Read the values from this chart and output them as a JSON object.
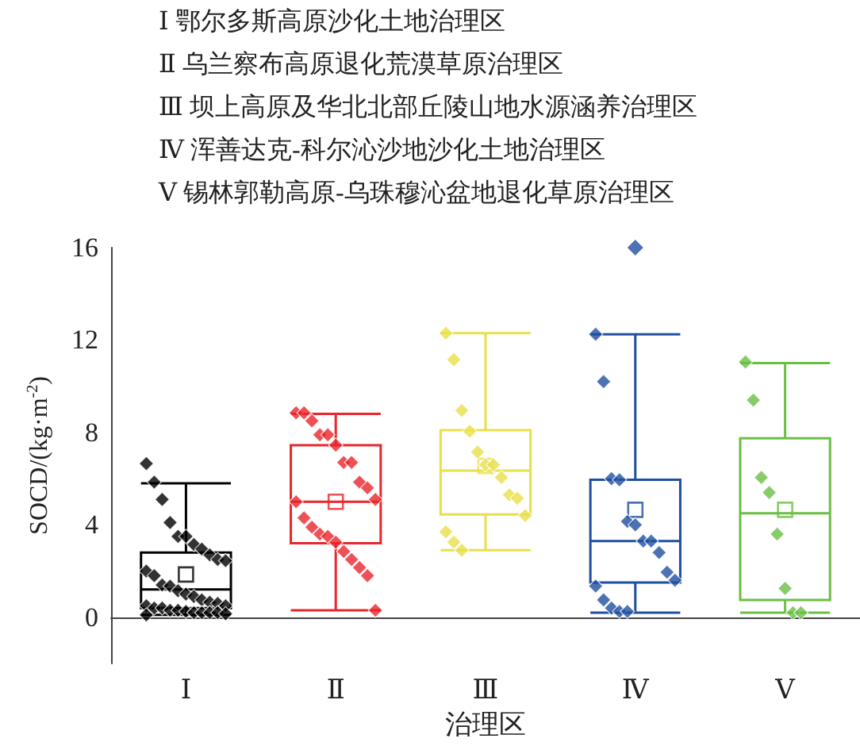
{
  "chart_data": {
    "type": "box",
    "annotations": [
      "Ⅰ 鄂尔多斯高原沙化土地治理区",
      "Ⅱ 乌兰察布高原退化荒漠草原治理区",
      "Ⅲ 坝上高原及华北北部丘陵山地水源涵养治理区",
      "Ⅳ 浑善达克-科尔沁沙地沙化土地治理区",
      "Ⅴ 锡林郭勒高原-乌珠穆沁盆地退化草原治理区"
    ],
    "xlabel": "治理区",
    "ylabel": "SOCD/(kg·m$^{-2}$)",
    "categories": [
      "Ⅰ",
      "Ⅱ",
      "Ⅲ",
      "Ⅳ",
      "Ⅴ"
    ],
    "colors": [
      "#000000",
      "#e8262b",
      "#e8e04a",
      "#1f4fa0",
      "#6abf45"
    ],
    "boxes": [
      {
        "low": 0.1,
        "q1": 0.4,
        "median": 1.2,
        "q3": 2.8,
        "high": 5.8,
        "mean": 1.85
      },
      {
        "low": 0.3,
        "q1": 3.2,
        "median": 5.0,
        "q3": 7.45,
        "high": 8.8,
        "mean": 5.0
      },
      {
        "low": 2.9,
        "q1": 4.45,
        "median": 6.35,
        "q3": 8.1,
        "high": 12.3,
        "mean": 6.55
      },
      {
        "low": 0.2,
        "q1": 1.5,
        "median": 3.3,
        "q3": 5.95,
        "high": 12.25,
        "mean": 4.65,
        "outliers": [
          16
        ]
      },
      {
        "low": 0.2,
        "q1": 0.75,
        "median": 4.5,
        "q3": 7.75,
        "high": 11.0,
        "mean": 4.65
      }
    ],
    "series": [
      {
        "type": "scatter",
        "color": "#000000",
        "x": [
          "Ⅰ",
          "Ⅰ",
          "Ⅰ",
          "Ⅰ",
          "Ⅰ",
          "Ⅰ",
          "Ⅰ",
          "Ⅰ",
          "Ⅰ",
          "Ⅰ",
          "Ⅰ",
          "Ⅰ",
          "Ⅰ",
          "Ⅰ",
          "Ⅰ",
          "Ⅰ",
          "Ⅰ",
          "Ⅰ",
          "Ⅰ",
          "Ⅰ",
          "Ⅰ",
          "Ⅰ",
          "Ⅰ",
          "Ⅰ",
          "Ⅰ",
          "Ⅰ",
          "Ⅰ",
          "Ⅰ",
          "Ⅰ",
          "Ⅰ",
          "Ⅰ",
          "Ⅰ",
          "Ⅰ",
          "Ⅰ"
        ],
        "values": [
          6.65,
          5.85,
          5.1,
          4.1,
          3.5,
          3.5,
          3.15,
          2.95,
          2.7,
          2.5,
          2.45,
          2.0,
          1.8,
          1.4,
          1.35,
          1.15,
          1.0,
          0.9,
          0.75,
          0.65,
          0.6,
          0.5,
          0.5,
          0.4,
          0.4,
          0.3,
          0.3,
          0.25,
          0.2,
          0.2,
          0.2,
          0.2,
          0.15,
          0.1
        ]
      },
      {
        "type": "scatter",
        "color": "#e8262b",
        "x": [
          "Ⅱ",
          "Ⅱ",
          "Ⅱ",
          "Ⅱ",
          "Ⅱ",
          "Ⅱ",
          "Ⅱ",
          "Ⅱ",
          "Ⅱ",
          "Ⅱ",
          "Ⅱ",
          "Ⅱ",
          "Ⅱ",
          "Ⅱ",
          "Ⅱ",
          "Ⅱ",
          "Ⅱ",
          "Ⅱ",
          "Ⅱ",
          "Ⅱ",
          "Ⅱ",
          "Ⅱ"
        ],
        "values": [
          8.85,
          8.85,
          8.5,
          7.9,
          7.9,
          7.45,
          6.7,
          6.7,
          5.85,
          5.6,
          5.1,
          5.0,
          4.3,
          3.9,
          3.6,
          3.5,
          3.25,
          2.85,
          2.5,
          2.15,
          1.8,
          0.3
        ]
      },
      {
        "type": "scatter",
        "color": "#e8e04a",
        "x": [
          "Ⅲ",
          "Ⅲ",
          "Ⅲ",
          "Ⅲ",
          "Ⅲ",
          "Ⅲ",
          "Ⅲ",
          "Ⅲ",
          "Ⅲ",
          "Ⅲ",
          "Ⅲ",
          "Ⅲ",
          "Ⅲ",
          "Ⅲ"
        ],
        "values": [
          12.3,
          11.15,
          8.95,
          8.05,
          7.15,
          6.6,
          6.6,
          6.05,
          5.3,
          5.15,
          4.4,
          3.7,
          3.25,
          2.9
        ]
      },
      {
        "type": "scatter",
        "color": "#1f4fa0",
        "x": [
          "Ⅳ",
          "Ⅳ",
          "Ⅳ",
          "Ⅳ",
          "Ⅳ",
          "Ⅳ",
          "Ⅳ",
          "Ⅳ",
          "Ⅳ",
          "Ⅳ",
          "Ⅳ",
          "Ⅳ",
          "Ⅳ",
          "Ⅳ",
          "Ⅳ",
          "Ⅳ"
        ],
        "values": [
          12.25,
          10.2,
          6.0,
          5.95,
          4.15,
          4.0,
          3.3,
          3.3,
          2.8,
          1.95,
          1.6,
          1.35,
          0.75,
          0.4,
          0.25,
          0.25
        ]
      },
      {
        "type": "scatter",
        "color": "#6abf45",
        "x": [
          "Ⅴ",
          "Ⅴ",
          "Ⅴ",
          "Ⅴ",
          "Ⅴ",
          "Ⅴ",
          "Ⅴ",
          "Ⅴ"
        ],
        "values": [
          11.05,
          9.4,
          6.05,
          5.4,
          3.6,
          1.25,
          0.2,
          0.2
        ]
      }
    ],
    "marker": "diamond",
    "ylim": [
      -2,
      16
    ],
    "yticks": [
      0,
      4,
      8,
      12,
      16
    ],
    "grid": false,
    "legend": false
  }
}
